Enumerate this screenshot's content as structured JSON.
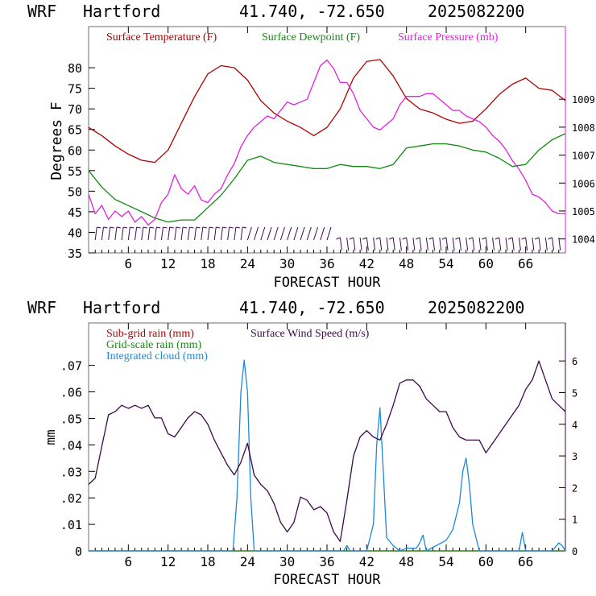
{
  "charts": [
    {
      "header": {
        "model": "WRF",
        "station": "Hartford",
        "coords": "41.740, -72.650",
        "run": "2025082200"
      },
      "xlabel": "FORECAST HOUR",
      "ylabel_left": "Degrees F",
      "legend": [
        {
          "label": "Surface Temperature (F)",
          "color": "#b00000"
        },
        {
          "label": "Surface Dewpoint (F)",
          "color": "#138a13"
        },
        {
          "label": "Surface Pressure (mb)",
          "color": "#e020e0"
        }
      ]
    },
    {
      "header": {
        "model": "WRF",
        "station": "Hartford",
        "coords": "41.740, -72.650",
        "run": "2025082200"
      },
      "xlabel": "FORECAST HOUR",
      "ylabel_left": "mm",
      "legend": [
        {
          "label": "Sub-grid rain (mm)",
          "color": "#b00000"
        },
        {
          "label": "Grid-scale rain (mm)",
          "color": "#138a13"
        },
        {
          "label": "Integrated cloud (mm)",
          "color": "#1e88d8"
        },
        {
          "label": "Surface Wind Speed (m/s)",
          "color": "#3a0a4a"
        }
      ]
    }
  ],
  "chart_data": [
    {
      "type": "line",
      "title": "WRF Hartford 41.740, -72.650 2025082200",
      "xlabel": "FORECAST HOUR",
      "ylabel": "Degrees F",
      "xlim": [
        0,
        72
      ],
      "ylim": [
        35,
        90
      ],
      "y2lim": [
        1003.5,
        1011.6
      ],
      "xticks": [
        "6",
        "12",
        "18",
        "24",
        "30",
        "36",
        "42",
        "48",
        "54",
        "60",
        "66"
      ],
      "yticks": [
        "35",
        "40",
        "45",
        "50",
        "55",
        "60",
        "65",
        "70",
        "75",
        "80"
      ],
      "y2ticks": [
        "1004",
        "1005",
        "1006",
        "1007",
        "1008",
        "1009"
      ],
      "grid": false,
      "legend_position": "top",
      "series": [
        {
          "name": "Surface Temperature (F)",
          "axis": "left",
          "color": "#b00000",
          "x": [
            0,
            2,
            4,
            6,
            8,
            10,
            12,
            14,
            16,
            18,
            20,
            22,
            24,
            26,
            28,
            30,
            32,
            34,
            36,
            38,
            40,
            42,
            44,
            46,
            48,
            50,
            52,
            54,
            56,
            58,
            60,
            62,
            64,
            66,
            68,
            70,
            72
          ],
          "y": [
            65.5,
            63.5,
            61,
            59,
            57.5,
            57,
            60,
            66.5,
            73,
            78.5,
            80.5,
            80,
            77,
            72,
            69,
            67,
            65.5,
            63.5,
            65.5,
            70,
            77.5,
            81.5,
            82,
            78,
            72.5,
            70,
            69,
            67.5,
            66.5,
            67,
            70,
            73.5,
            76,
            77.5,
            75,
            74.5,
            72
          ]
        },
        {
          "name": "Surface Dewpoint (F)",
          "axis": "left",
          "color": "#138a13",
          "x": [
            0,
            2,
            4,
            6,
            8,
            10,
            12,
            14,
            16,
            18,
            20,
            22,
            24,
            26,
            28,
            30,
            32,
            34,
            36,
            38,
            40,
            42,
            44,
            46,
            48,
            50,
            52,
            54,
            56,
            58,
            60,
            62,
            64,
            66,
            68,
            70,
            72
          ],
          "y": [
            55,
            51,
            48,
            46.5,
            45,
            43.5,
            42.5,
            43,
            43,
            46,
            49,
            53,
            57.5,
            58.5,
            57,
            56.5,
            56,
            55.5,
            55.5,
            56.5,
            56,
            56,
            55.5,
            56.5,
            60.5,
            61,
            61.5,
            61.5,
            61,
            60,
            59.5,
            58,
            56,
            56.5,
            60,
            62.5,
            64
          ]
        },
        {
          "name": "Surface Pressure (mb)",
          "axis": "right",
          "color": "#e020e0",
          "x": [
            0,
            1,
            2,
            3,
            4,
            5,
            6,
            7,
            8,
            9,
            10,
            11,
            12,
            13,
            14,
            15,
            16,
            17,
            18,
            19,
            20,
            21,
            22,
            23,
            24,
            25,
            26,
            27,
            28,
            29,
            30,
            31,
            32,
            33,
            34,
            35,
            36,
            37,
            38,
            39,
            40,
            41,
            42,
            43,
            44,
            45,
            46,
            47,
            48,
            49,
            50,
            51,
            52,
            53,
            54,
            55,
            56,
            57,
            58,
            59,
            60,
            61,
            62,
            63,
            64,
            65,
            66,
            67,
            68,
            69,
            70,
            71,
            72
          ],
          "y": [
            1005.6,
            1004.9,
            1005.2,
            1004.7,
            1005.0,
            1004.8,
            1005.0,
            1004.6,
            1004.8,
            1004.5,
            1004.7,
            1005.3,
            1005.6,
            1006.3,
            1005.8,
            1005.6,
            1005.9,
            1005.4,
            1005.3,
            1005.6,
            1005.8,
            1006.3,
            1006.7,
            1007.3,
            1007.7,
            1008.0,
            1008.2,
            1008.4,
            1008.3,
            1008.6,
            1008.9,
            1008.8,
            1008.9,
            1009.0,
            1009.6,
            1010.2,
            1010.4,
            1010.1,
            1009.6,
            1009.6,
            1009.2,
            1008.6,
            1008.3,
            1008.0,
            1007.9,
            1008.1,
            1008.3,
            1008.8,
            1009.1,
            1009.1,
            1009.1,
            1009.2,
            1009.2,
            1009.0,
            1008.8,
            1008.6,
            1008.6,
            1008.4,
            1008.3,
            1008.2,
            1008.0,
            1007.7,
            1007.5,
            1007.2,
            1006.8,
            1006.5,
            1006.1,
            1005.6,
            1005.5,
            1005.3,
            1005.0,
            1004.9,
            1004.9
          ]
        }
      ]
    },
    {
      "type": "line",
      "title": "WRF Hartford 41.740, -72.650 2025082200",
      "xlabel": "FORECAST HOUR",
      "ylabel": "mm",
      "xlim": [
        0,
        72
      ],
      "ylim": [
        0,
        0.086
      ],
      "y2lim": [
        0,
        7.2
      ],
      "xticks": [
        "6",
        "12",
        "18",
        "24",
        "30",
        "36",
        "42",
        "48",
        "54",
        "60",
        "66"
      ],
      "yticks": [
        "0",
        ".01",
        ".02",
        ".03",
        ".04",
        ".05",
        ".06",
        ".07"
      ],
      "y2ticks": [
        "0",
        "1",
        "2",
        "3",
        "4",
        "5",
        "6"
      ],
      "grid": false,
      "legend_position": "top-left",
      "series": [
        {
          "name": "Sub-grid rain (mm)",
          "axis": "left",
          "color": "#b00000",
          "x": [
            0,
            72
          ],
          "y": [
            0,
            0
          ]
        },
        {
          "name": "Grid-scale rain (mm)",
          "axis": "left",
          "color": "#138a13",
          "x": [
            0,
            72
          ],
          "y": [
            0,
            0
          ]
        },
        {
          "name": "Integrated cloud (mm)",
          "axis": "left",
          "color": "#1e88d8",
          "x": [
            0,
            21.8,
            22.4,
            23,
            23.5,
            24,
            24.5,
            25,
            38.5,
            39,
            39.5,
            42,
            43,
            43.5,
            44,
            44.5,
            45,
            46,
            47,
            48,
            49,
            49.5,
            50,
            50.5,
            51,
            54,
            55,
            56,
            56.5,
            57,
            57.5,
            58,
            59,
            65,
            65.5,
            66,
            70,
            71,
            71.5,
            72
          ],
          "y": [
            0,
            0,
            0.02,
            0.06,
            0.072,
            0.06,
            0.02,
            0,
            0,
            0.002,
            0,
            0,
            0.01,
            0.04,
            0.054,
            0.03,
            0.005,
            0.002,
            0,
            0.001,
            0.001,
            0.001,
            0.003,
            0.006,
            0,
            0.004,
            0.008,
            0.018,
            0.03,
            0.035,
            0.025,
            0.01,
            0,
            0,
            0.007,
            0,
            0,
            0.003,
            0.002,
            0
          ]
        },
        {
          "name": "Surface Wind Speed (m/s)",
          "axis": "right",
          "color": "#3a0a4a",
          "x": [
            0,
            1,
            2,
            3,
            4,
            5,
            6,
            7,
            8,
            9,
            10,
            11,
            12,
            13,
            14,
            15,
            16,
            17,
            18,
            19,
            20,
            21,
            22,
            23,
            24,
            25,
            26,
            27,
            28,
            29,
            30,
            31,
            32,
            33,
            34,
            35,
            36,
            37,
            38,
            39,
            40,
            41,
            42,
            43,
            44,
            45,
            46,
            47,
            48,
            49,
            50,
            51,
            52,
            53,
            54,
            55,
            56,
            57,
            58,
            59,
            60,
            61,
            62,
            63,
            64,
            65,
            66,
            67,
            68,
            69,
            70,
            71,
            72
          ],
          "y": [
            2.1,
            2.3,
            3.3,
            4.3,
            4.4,
            4.6,
            4.5,
            4.6,
            4.5,
            4.6,
            4.2,
            4.2,
            3.7,
            3.6,
            3.9,
            4.2,
            4.4,
            4.3,
            4.0,
            3.5,
            3.1,
            2.7,
            2.4,
            2.8,
            3.4,
            2.4,
            2.1,
            1.9,
            1.5,
            0.9,
            0.6,
            0.9,
            1.7,
            1.6,
            1.3,
            1.4,
            1.2,
            0.6,
            0.3,
            1.6,
            3.0,
            3.6,
            3.8,
            3.6,
            3.5,
            4.0,
            4.6,
            5.3,
            5.4,
            5.4,
            5.2,
            4.8,
            4.6,
            4.4,
            4.4,
            3.9,
            3.6,
            3.5,
            3.5,
            3.5,
            3.1,
            3.4,
            3.7,
            4.0,
            4.3,
            4.6,
            5.1,
            5.4,
            6.0,
            5.4,
            4.8,
            4.6,
            4.4
          ]
        }
      ]
    }
  ]
}
